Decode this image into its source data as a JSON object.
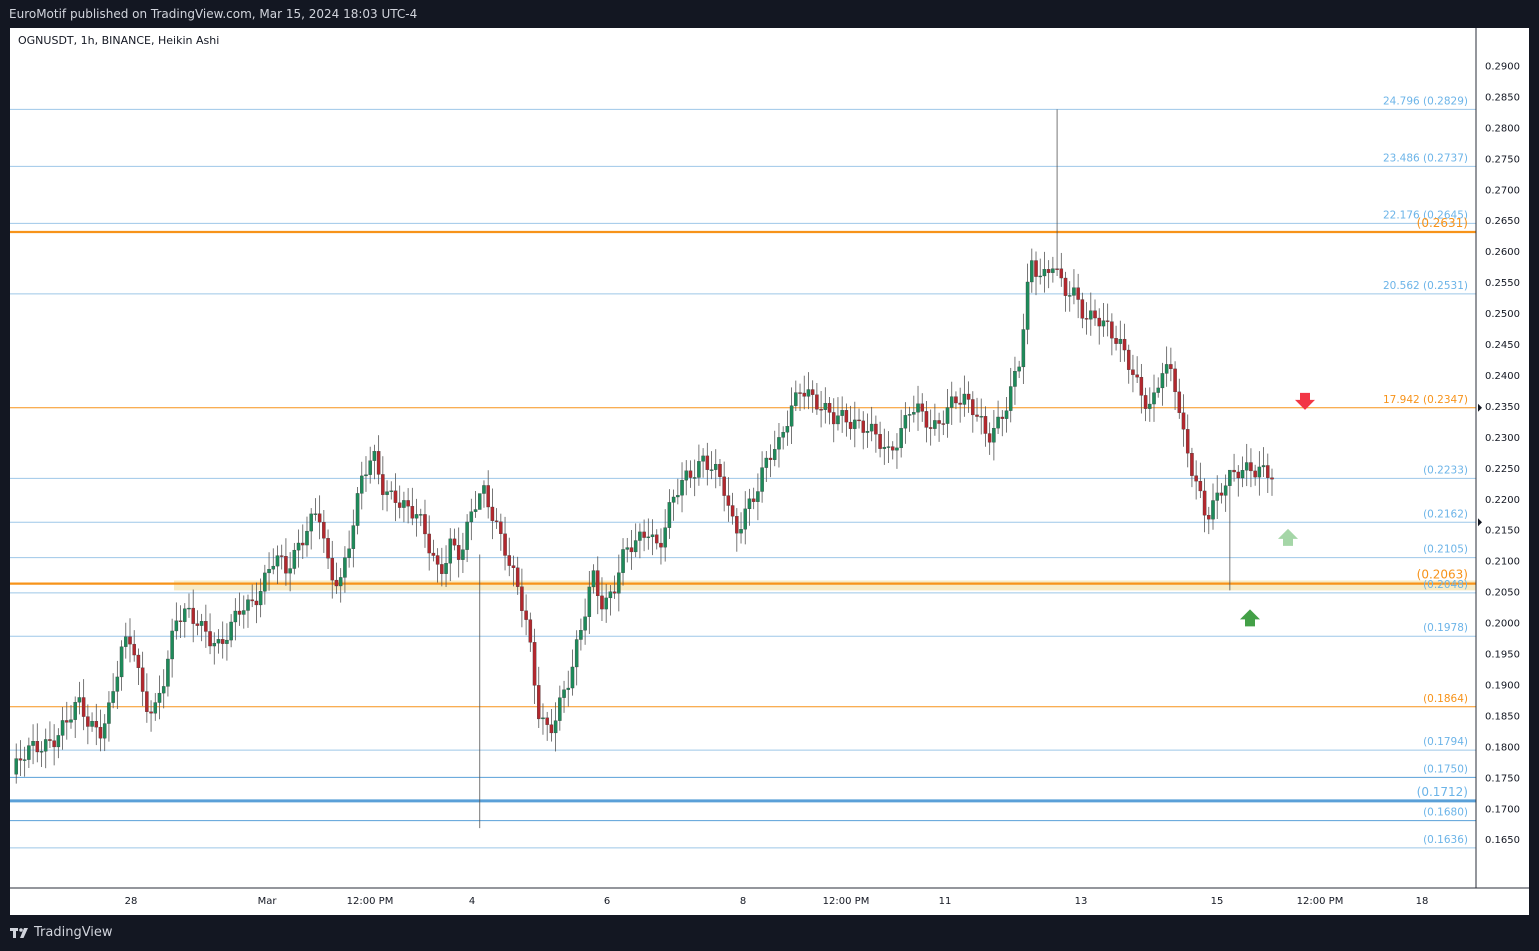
{
  "header": {
    "publisher_line": "EuroMotif published on TradingView.com, Mar 15, 2024 18:03 UTC-4"
  },
  "symbol_info": "OGNUSDT, 1h, BINANCE, Heikin Ashi",
  "footer": {
    "brand": "TradingView"
  },
  "colors": {
    "bull": "#26a69a",
    "bear": "#ef5350",
    "bull_body": "#1e8a5a",
    "bear_body": "#b2282e",
    "fib_line": "#9ec7e8",
    "fib_text": "#6cb4e8",
    "orange": "#f7931a",
    "arrow_red": "#f23645",
    "arrow_green": "#43a047",
    "arrow_light_green": "#a5d6a7",
    "zone_fill": "#f5e6b8"
  },
  "chart_data": {
    "type": "candlestick",
    "title": "OGNUSDT, 1h, BINANCE, Heikin Ashi",
    "y_axis": {
      "side": "right",
      "range": [
        0.161,
        0.2925
      ],
      "ticks": [
        "0.2900",
        "0.2850",
        "0.2800",
        "0.2750",
        "0.2700",
        "0.2650",
        "0.2600",
        "0.2550",
        "0.2500",
        "0.2450",
        "0.2400",
        "0.2350",
        "0.2300",
        "0.2250",
        "0.2200",
        "0.2150",
        "0.2100",
        "0.2050",
        "0.2000",
        "0.1950",
        "0.1900",
        "0.1850",
        "0.1800",
        "0.1750",
        "0.1700",
        "0.1650"
      ]
    },
    "x_axis": {
      "labels": [
        "28",
        "Mar",
        "12:00 PM",
        "4",
        "6",
        "8",
        "12:00 PM",
        "11",
        "13",
        "15",
        "12:00 PM",
        "18"
      ]
    },
    "price_series_path": [
      [
        0.1755,
        0.1778
      ],
      [
        0.1796,
        0.1808
      ],
      [
        0.182,
        0.1835
      ],
      [
        0.1865,
        0.184
      ],
      [
        0.183,
        0.1868
      ],
      [
        0.195,
        0.1968
      ],
      [
        0.188,
        0.1862
      ],
      [
        0.1915,
        0.1998
      ],
      [
        0.2018,
        0.201
      ],
      [
        0.1978,
        0.195
      ],
      [
        0.199,
        0.2034
      ],
      [
        0.2038,
        0.2062
      ],
      [
        0.21,
        0.2085
      ],
      [
        0.2125,
        0.216
      ],
      [
        0.2175,
        0.2068
      ],
      [
        0.207,
        0.2158
      ],
      [
        0.224,
        0.226
      ],
      [
        0.2205,
        0.221
      ],
      [
        0.219,
        0.217
      ],
      [
        0.212,
        0.2078
      ],
      [
        0.2135,
        0.211
      ],
      [
        0.2175,
        0.221
      ],
      [
        0.2175,
        0.2125
      ],
      [
        0.206,
        0.199
      ],
      [
        0.186,
        0.183
      ],
      [
        0.187,
        0.1908
      ],
      [
        0.199,
        0.2085
      ],
      [
        0.203,
        0.2055
      ],
      [
        0.211,
        0.213
      ],
      [
        0.216,
        0.212
      ],
      [
        0.2175,
        0.222
      ],
      [
        0.2245,
        0.227
      ],
      [
        0.225,
        0.2208
      ],
      [
        0.214,
        0.219
      ],
      [
        0.222,
        0.2262
      ],
      [
        0.228,
        0.2345
      ],
      [
        0.239,
        0.2362
      ],
      [
        0.2335,
        0.233
      ],
      [
        0.234,
        0.2325
      ],
      [
        0.231,
        0.229
      ],
      [
        0.2275,
        0.231
      ],
      [
        0.235,
        0.233
      ],
      [
        0.2305,
        0.234
      ],
      [
        0.237,
        0.2355
      ],
      [
        0.233,
        0.23
      ],
      [
        0.233,
        0.2365
      ],
      [
        0.242,
        0.258
      ],
      [
        0.256,
        0.259
      ],
      [
        0.2535,
        0.252
      ],
      [
        0.249,
        0.2505
      ],
      [
        0.248,
        0.2445
      ],
      [
        0.241,
        0.2375
      ],
      [
        0.2355,
        0.241
      ],
      [
        0.239,
        0.229
      ],
      [
        0.224,
        0.2175
      ],
      [
        0.2195,
        0.2225
      ],
      [
        0.225,
        0.2258
      ],
      [
        0.2245,
        0.223
      ]
    ],
    "annotated_levels": [
      {
        "label": "24.796",
        "price": 0.2829,
        "style": "fib"
      },
      {
        "label": "23.486",
        "price": 0.2737,
        "style": "fib"
      },
      {
        "label": "22.176",
        "price": 0.2645,
        "style": "fib"
      },
      {
        "label": "",
        "price": 0.2631,
        "style": "orange-bold"
      },
      {
        "label": "20.562",
        "price": 0.2531,
        "style": "fib"
      },
      {
        "label": "17.942",
        "price": 0.2347,
        "style": "orange"
      },
      {
        "label": "",
        "price": 0.2233,
        "style": "fib"
      },
      {
        "label": "",
        "price": 0.2162,
        "style": "fib"
      },
      {
        "label": "",
        "price": 0.2105,
        "style": "fib"
      },
      {
        "label": "",
        "price": 0.2063,
        "style": "orange-bold"
      },
      {
        "label": "",
        "price": 0.2048,
        "style": "fib"
      },
      {
        "label": "",
        "price": 0.1978,
        "style": "fib"
      },
      {
        "label": "",
        "price": 0.1864,
        "style": "orange"
      },
      {
        "label": "",
        "price": 0.1794,
        "style": "fib"
      },
      {
        "label": "",
        "price": 0.175,
        "style": "fib-strong"
      },
      {
        "label": "",
        "price": 0.1712,
        "style": "fib-bold"
      },
      {
        "label": "",
        "price": 0.168,
        "style": "fib-strong"
      },
      {
        "label": "",
        "price": 0.1636,
        "style": "fib"
      }
    ],
    "level_texts": [
      "24.796 (0.2829)",
      "23.486 (0.2737)",
      "22.176 (0.2645)",
      "(0.2631)",
      "20.562 (0.2531)",
      "17.942 (0.2347)",
      "(0.2233)",
      "(0.2162)",
      "(0.2105)",
      "(0.2063)",
      "(0.2048)",
      "(0.1978)",
      "(0.1864)",
      "(0.1794)",
      "(0.1750)",
      "(0.1712)",
      "(0.1680)",
      "(0.1636)"
    ],
    "zone": {
      "from": 0.2052,
      "to": 0.2068
    },
    "markers": [
      {
        "type": "arrow-down",
        "color": "red",
        "price": 0.2355
      },
      {
        "type": "arrow-up",
        "color": "light-green",
        "price": 0.214
      },
      {
        "type": "arrow-up",
        "color": "green",
        "price": 0.201
      }
    ],
    "extreme_wicks": [
      {
        "high": 0.2829,
        "low": 0.256
      },
      {
        "high": 0.211,
        "low": 0.1668
      },
      {
        "high": 0.224,
        "low": 0.2052
      }
    ]
  }
}
